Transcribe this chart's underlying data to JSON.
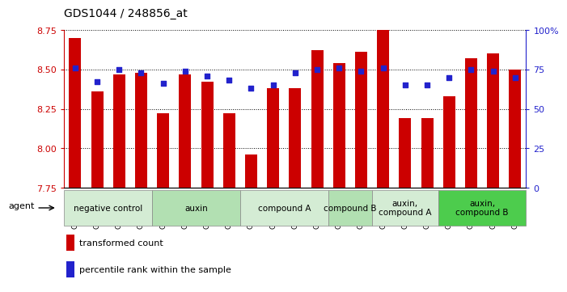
{
  "title": "GDS1044 / 248856_at",
  "samples": [
    "GSM25858",
    "GSM25859",
    "GSM25860",
    "GSM25861",
    "GSM25862",
    "GSM25863",
    "GSM25864",
    "GSM25865",
    "GSM25866",
    "GSM25867",
    "GSM25868",
    "GSM25869",
    "GSM25870",
    "GSM25871",
    "GSM25872",
    "GSM25873",
    "GSM25874",
    "GSM25875",
    "GSM25876",
    "GSM25877",
    "GSM25878"
  ],
  "bar_values": [
    8.7,
    8.36,
    8.47,
    8.48,
    8.22,
    8.47,
    8.42,
    8.22,
    7.96,
    8.38,
    8.38,
    8.62,
    8.54,
    8.61,
    8.75,
    8.19,
    8.19,
    8.33,
    8.57,
    8.6,
    8.5
  ],
  "percentile_values": [
    76,
    67,
    75,
    73,
    66,
    74,
    71,
    68,
    63,
    65,
    73,
    75,
    76,
    74,
    76,
    65,
    65,
    70,
    75,
    74,
    70
  ],
  "bar_color": "#cc0000",
  "dot_color": "#2222cc",
  "ylim_left": [
    7.75,
    8.75
  ],
  "ylim_right": [
    0,
    100
  ],
  "yticks_left": [
    7.75,
    8.0,
    8.25,
    8.5,
    8.75
  ],
  "yticks_right": [
    0,
    25,
    50,
    75,
    100
  ],
  "groups": [
    {
      "label": "negative control",
      "start": 0,
      "end": 3,
      "color": "#d4ecd4"
    },
    {
      "label": "auxin",
      "start": 4,
      "end": 7,
      "color": "#b2e0b2"
    },
    {
      "label": "compound A",
      "start": 8,
      "end": 11,
      "color": "#d4ecd4"
    },
    {
      "label": "compound B",
      "start": 12,
      "end": 13,
      "color": "#b2e0b2"
    },
    {
      "label": "auxin,\ncompound A",
      "start": 14,
      "end": 16,
      "color": "#d4ecd4"
    },
    {
      "label": "auxin,\ncompound B",
      "start": 17,
      "end": 20,
      "color": "#4dcc4d"
    }
  ],
  "legend_bar_label": "transformed count",
  "legend_dot_label": "percentile rank within the sample",
  "bar_width": 0.55
}
